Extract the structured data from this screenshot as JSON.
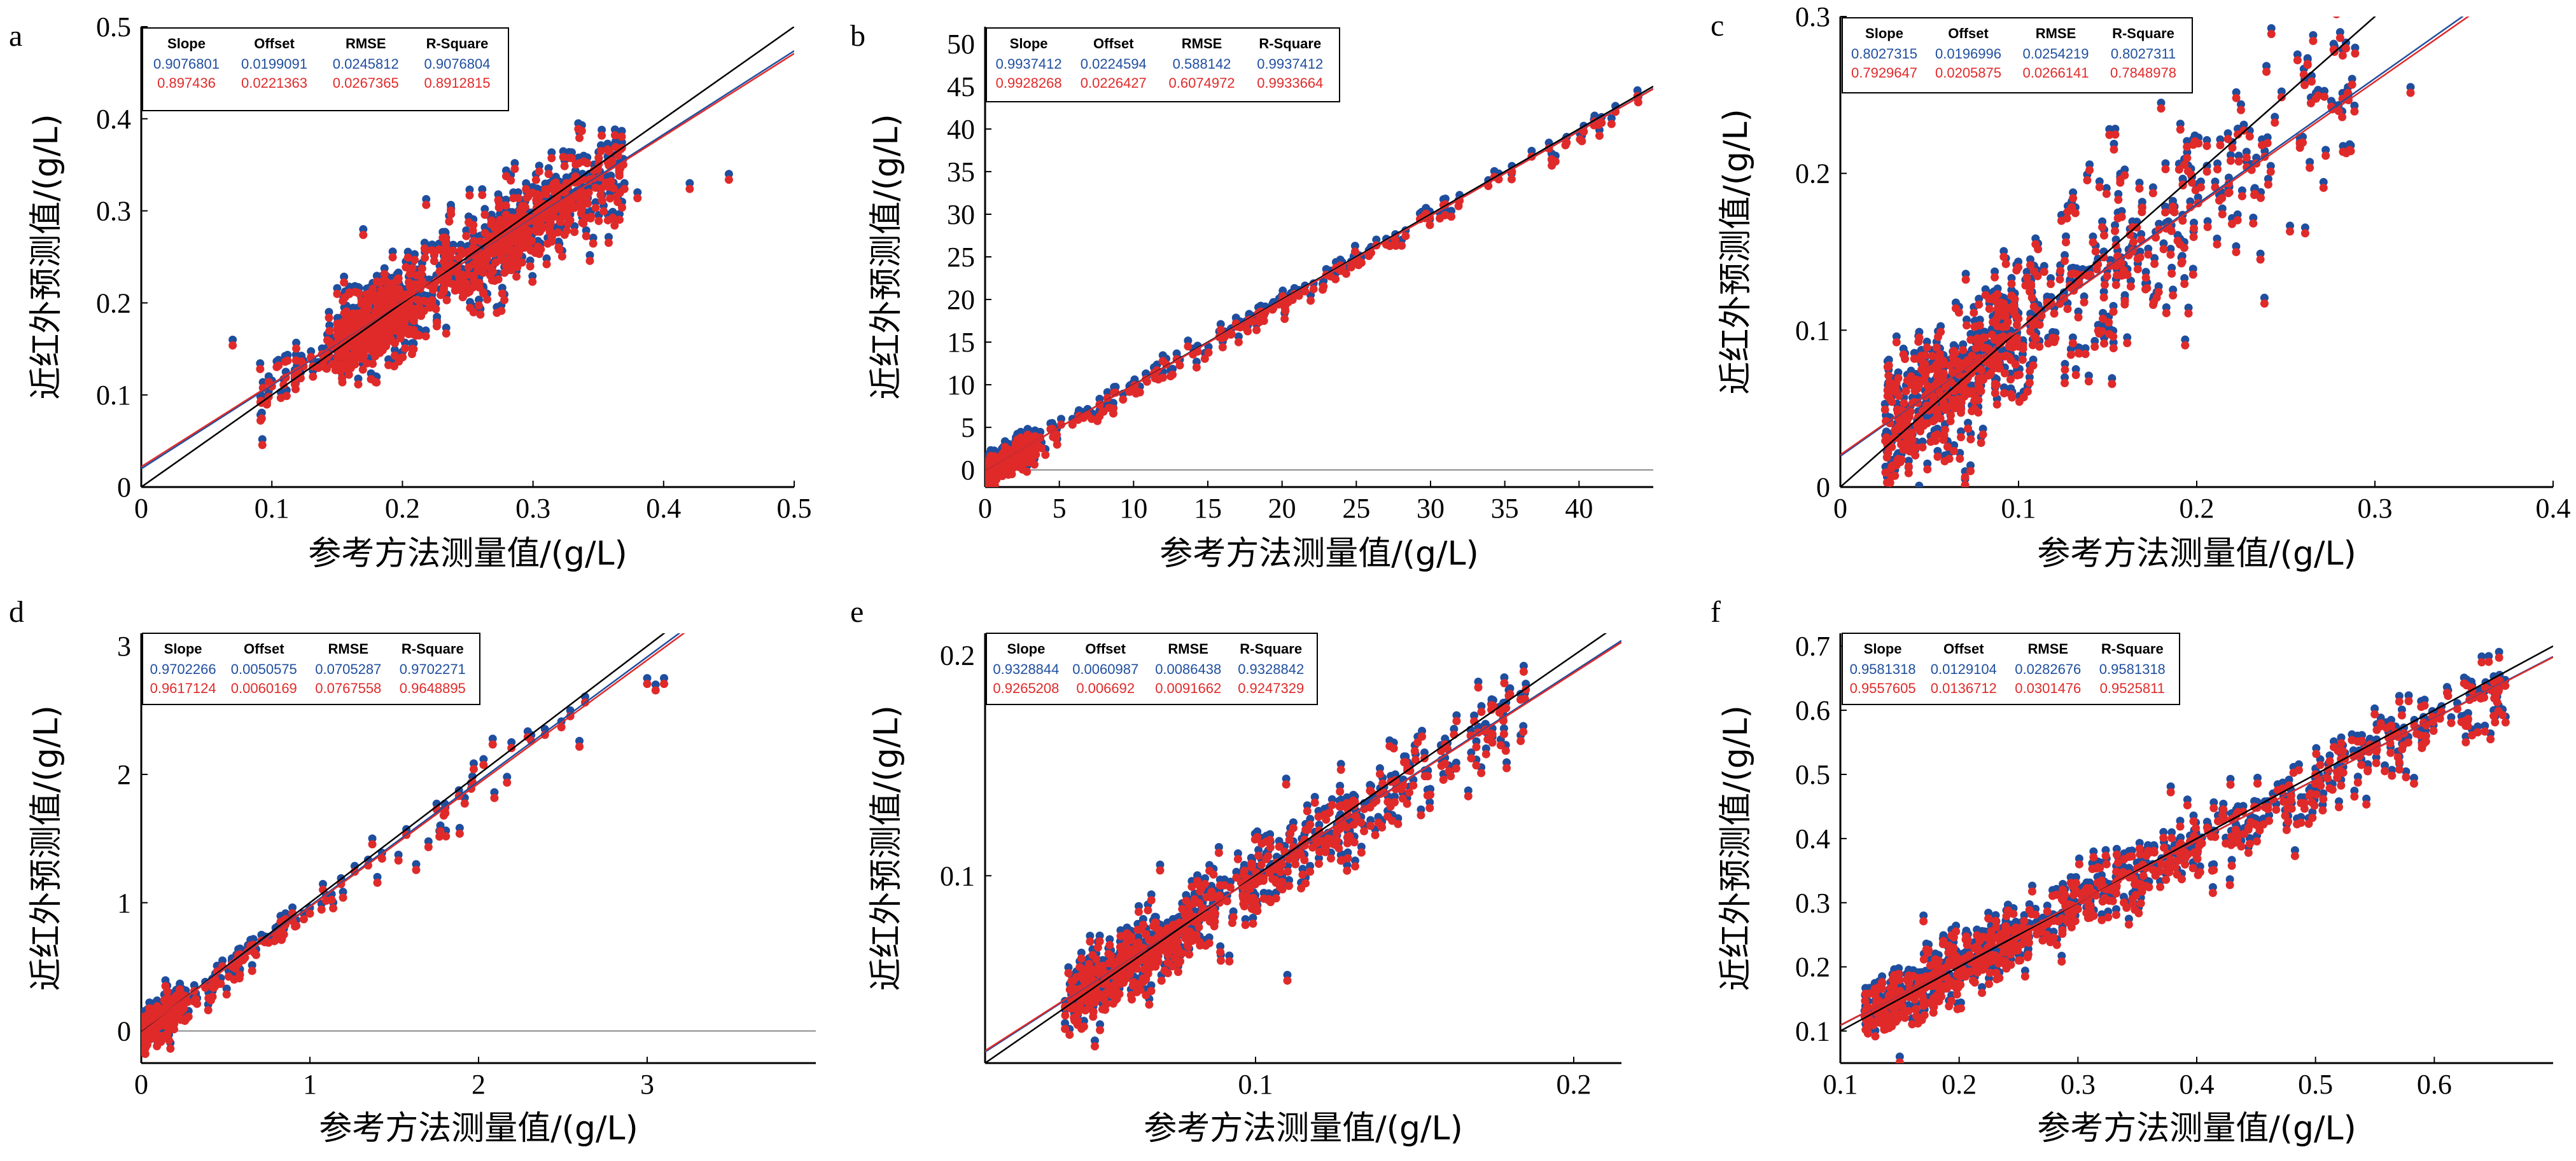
{
  "colors": {
    "blue": "#1f4e9e",
    "red": "#e02a2a",
    "black": "#000000",
    "diag": "#000000",
    "grid": "#8a8a8a"
  },
  "chart_data": [
    {
      "panel": "a",
      "type": "scatter",
      "xlabel": "参考方法测量值/(g/L)",
      "ylabel": "近红外预测值/(g/L)",
      "xlim": [
        0,
        0.5
      ],
      "ylim": [
        0,
        0.5
      ],
      "xticks": [
        0,
        0.1,
        0.2,
        0.3,
        0.4,
        0.5
      ],
      "yticks": [
        0,
        0.1,
        0.2,
        0.3,
        0.4,
        0.5
      ],
      "xtick_labels": [
        "0",
        "0.1",
        "0.2",
        "0.3",
        "0.4",
        "0.5"
      ],
      "ytick_labels": [
        "0",
        "0.1",
        "0.2",
        "0.3",
        "0.4",
        "0.5"
      ],
      "stats": {
        "headers": [
          "Slope",
          "Offset",
          "RMSE",
          "R-Square"
        ],
        "rows": [
          [
            "0.9076801",
            "0.0199091",
            "0.0245812",
            "0.9076804"
          ],
          [
            "0.897436",
            "0.0221363",
            "0.0267365",
            "0.8912815"
          ]
        ]
      },
      "series": [
        {
          "color": "blue",
          "slope": 0.9076801,
          "offset": 0.0199091
        },
        {
          "color": "red",
          "slope": 0.897436,
          "offset": 0.0221363
        }
      ],
      "cloud": [
        [
          0.09,
          0.33,
          0.015,
          240
        ],
        [
          0.15,
          0.2,
          0.022,
          330
        ],
        [
          0.2,
          0.3,
          0.03,
          230
        ],
        [
          0.28,
          0.37,
          0.028,
          180
        ]
      ],
      "outliers": [
        [
          0.07,
          0.16
        ],
        [
          0.37,
          0.33
        ],
        [
          0.38,
          0.32
        ],
        [
          0.42,
          0.33
        ],
        [
          0.45,
          0.34
        ],
        [
          0.17,
          0.28
        ]
      ],
      "hline": null
    },
    {
      "panel": "b",
      "type": "scatter",
      "xlabel": "参考方法测量值/(g/L)",
      "ylabel": "近红外预测值/(g/L)",
      "xlim": [
        0,
        45
      ],
      "ylim": [
        -2,
        52
      ],
      "xticks": [
        0,
        5,
        10,
        15,
        20,
        25,
        30,
        35,
        40
      ],
      "yticks": [
        0,
        5,
        10,
        15,
        20,
        25,
        30,
        35,
        40,
        45,
        50
      ],
      "xtick_labels": [
        "0",
        "5",
        "10",
        "15",
        "20",
        "25",
        "30",
        "35",
        "40"
      ],
      "ytick_labels": [
        "0",
        "5",
        "10",
        "15",
        "20",
        "25",
        "30",
        "35",
        "40",
        "45",
        "50"
      ],
      "stats": {
        "headers": [
          "Slope",
          "Offset",
          "RMSE",
          "R-Square"
        ],
        "rows": [
          [
            "0.9937412",
            "0.0224594",
            "0.588142",
            "0.9937412"
          ],
          [
            "0.9928268",
            "0.0226427",
            "0.6074972",
            "0.9933664"
          ]
        ]
      },
      "series": [
        {
          "color": "blue",
          "slope": 0.9937412,
          "offset": 0.0224594
        },
        {
          "color": "red",
          "slope": 0.9928268,
          "offset": 0.0226427
        }
      ],
      "cloud": [
        [
          0,
          3.5,
          0.9,
          260
        ],
        [
          3.5,
          25,
          0.7,
          120
        ],
        [
          25,
          44,
          0.6,
          50
        ]
      ],
      "outliers": [],
      "hline": 0
    },
    {
      "panel": "c",
      "type": "scatter",
      "xlabel": "参考方法测量值/(g/L)",
      "ylabel": "近红外预测值/(g/L)",
      "xlim": [
        0,
        0.4
      ],
      "ylim": [
        0,
        0.3
      ],
      "xticks": [
        0,
        0.1,
        0.2,
        0.3,
        0.4
      ],
      "yticks": [
        0,
        0.1,
        0.2,
        0.3
      ],
      "xtick_labels": [
        "0",
        "0.1",
        "0.2",
        "0.3",
        "0.4"
      ],
      "ytick_labels": [
        "0",
        "0.1",
        "0.2",
        "0.3"
      ],
      "stats": {
        "headers": [
          "Slope",
          "Offset",
          "RMSE",
          "R-Square"
        ],
        "rows": [
          [
            "0.8027315",
            "0.0196996",
            "0.0254219",
            "0.8027311"
          ],
          [
            "0.7929647",
            "0.0205875",
            "0.0266141",
            "0.7848978"
          ]
        ]
      },
      "series": [
        {
          "color": "blue",
          "slope": 0.8027315,
          "offset": 0.0196996
        },
        {
          "color": "red",
          "slope": 0.7929647,
          "offset": 0.0205875
        }
      ],
      "cloud": [
        [
          0.025,
          0.1,
          0.022,
          380
        ],
        [
          0.1,
          0.2,
          0.035,
          200
        ],
        [
          0.2,
          0.29,
          0.03,
          90
        ]
      ],
      "outliers": [
        [
          0.32,
          0.255
        ],
        [
          0.07,
          0.01
        ],
        [
          0.07,
          0.005
        ],
        [
          0.18,
          0.245
        ]
      ],
      "hline": null
    },
    {
      "panel": "d",
      "type": "scatter",
      "xlabel": "参考方法测量值/(g/L)",
      "ylabel": "近红外预测值/(g/L)",
      "xlim": [
        0,
        4
      ],
      "ylim": [
        -0.25,
        3.1
      ],
      "xticks": [
        0,
        1,
        2,
        3
      ],
      "yticks": [
        0,
        1,
        2,
        3
      ],
      "xtick_labels": [
        "0",
        "1",
        "2",
        "3"
      ],
      "ytick_labels": [
        "0",
        "1",
        "2",
        "3"
      ],
      "stats": {
        "headers": [
          "Slope",
          "Offset",
          "RMSE",
          "R-Square"
        ],
        "rows": [
          [
            "0.9702266",
            "0.0050575",
            "0.0705287",
            "0.9702271"
          ],
          [
            "0.9617124",
            "0.0060169",
            "0.0767558",
            "0.9648895"
          ]
        ]
      },
      "series": [
        {
          "color": "blue",
          "slope": 0.9702266,
          "offset": 0.0050575
        },
        {
          "color": "red",
          "slope": 0.9617124,
          "offset": 0.0060169
        }
      ],
      "cloud": [
        [
          0,
          0.25,
          0.08,
          160
        ],
        [
          0.25,
          1.1,
          0.07,
          70
        ],
        [
          1.1,
          2.7,
          0.1,
          35
        ]
      ],
      "outliers": [
        [
          3.0,
          2.75
        ],
        [
          3.1,
          2.75
        ],
        [
          3.05,
          2.7
        ],
        [
          1.63,
          1.3
        ],
        [
          1.37,
          1.5
        ],
        [
          1.4,
          1.2
        ]
      ],
      "hline": 0
    },
    {
      "panel": "e",
      "type": "scatter",
      "xlabel": "参考方法测量值/(g/L)",
      "ylabel": "近红外预测值/(g/L)",
      "xlim": [
        0.015,
        0.215
      ],
      "ylim": [
        0.015,
        0.21
      ],
      "xticks": [
        0.1,
        0.2
      ],
      "yticks": [
        0.1,
        0.2
      ],
      "xtick_labels": [
        "0.1",
        "0.2"
      ],
      "ytick_labels": [
        "0.1",
        "0.2"
      ],
      "stats": {
        "headers": [
          "Slope",
          "Offset",
          "RMSE",
          "R-Square"
        ],
        "rows": [
          [
            "0.9328844",
            "0.0060987",
            "0.0086438",
            "0.9328842"
          ],
          [
            "0.9265208",
            "0.006692",
            "0.0091662",
            "0.9247329"
          ]
        ]
      },
      "series": [
        {
          "color": "blue",
          "slope": 0.9328844,
          "offset": 0.0060987
        },
        {
          "color": "red",
          "slope": 0.9265208,
          "offset": 0.006692
        }
      ],
      "cloud": [
        [
          0.04,
          0.08,
          0.008,
          330
        ],
        [
          0.08,
          0.13,
          0.01,
          200
        ],
        [
          0.13,
          0.185,
          0.01,
          110
        ]
      ],
      "outliers": [
        [
          0.17,
          0.188
        ],
        [
          0.18,
          0.185
        ],
        [
          0.07,
          0.105
        ],
        [
          0.11,
          0.055
        ]
      ],
      "hline": null
    },
    {
      "panel": "f",
      "type": "scatter",
      "xlabel": "参考方法测量值/(g/L)",
      "ylabel": "近红外预测值/(g/L)",
      "xlim": [
        0.1,
        0.7
      ],
      "ylim": [
        0.05,
        0.72
      ],
      "xticks": [
        0.1,
        0.2,
        0.3,
        0.4,
        0.5,
        0.6
      ],
      "yticks": [
        0.1,
        0.2,
        0.3,
        0.4,
        0.5,
        0.6,
        0.7
      ],
      "xtick_labels": [
        "0.1",
        "0.2",
        "0.3",
        "0.4",
        "0.5",
        "0.6"
      ],
      "ytick_labels": [
        "0.1",
        "0.2",
        "0.3",
        "0.4",
        "0.5",
        "0.6",
        "0.7"
      ],
      "stats": {
        "headers": [
          "Slope",
          "Offset",
          "RMSE",
          "R-Square"
        ],
        "rows": [
          [
            "0.9581318",
            "0.0129104",
            "0.0282676",
            "0.9581318"
          ],
          [
            "0.9557605",
            "0.0136712",
            "0.0301476",
            "0.9525811"
          ]
        ]
      },
      "series": [
        {
          "color": "blue",
          "slope": 0.9581318,
          "offset": 0.0129104
        },
        {
          "color": "red",
          "slope": 0.9557605,
          "offset": 0.0136712
        }
      ],
      "cloud": [
        [
          0.12,
          0.25,
          0.025,
          320
        ],
        [
          0.25,
          0.45,
          0.028,
          250
        ],
        [
          0.45,
          0.66,
          0.03,
          170
        ]
      ],
      "outliers": [
        [
          0.15,
          0.06
        ],
        [
          0.17,
          0.28
        ],
        [
          0.65,
          0.6
        ],
        [
          0.66,
          0.59
        ]
      ],
      "hline": null
    }
  ]
}
